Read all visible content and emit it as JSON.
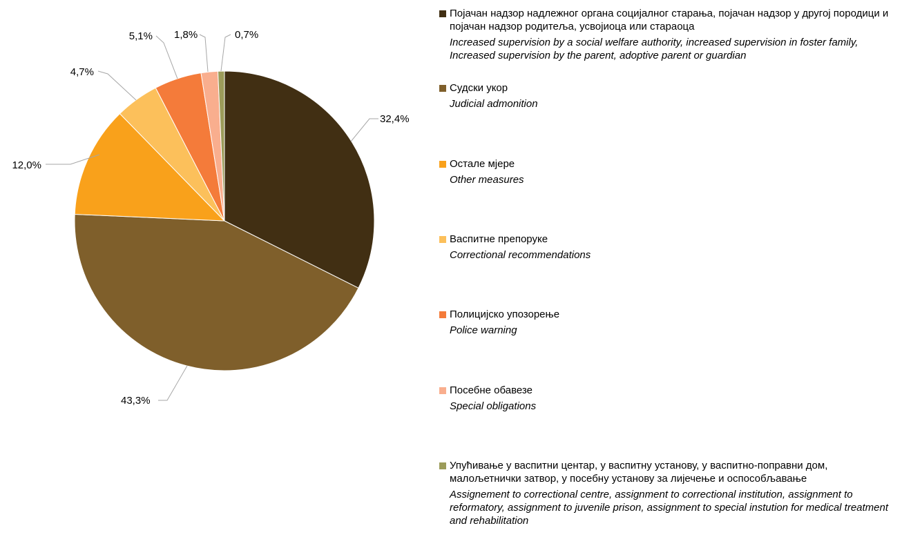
{
  "chart_data": {
    "type": "pie",
    "title": "",
    "unit": "%",
    "slices": [
      {
        "label_sr": "Појачан надзор надлежног органа социјалног старања, појачан надзор у другој породици и појачан надзор родитеља, усвојиоца или стараоца",
        "label_en": "Increased supervision by a social welfare authority, increased supervision in foster family, Increased supervision by the parent, adoptive parent or guardian",
        "value": 32.4,
        "value_label": "32,4%",
        "color": "#412F13"
      },
      {
        "label_sr": "Судски укор",
        "label_en": "Judicial admonition",
        "value": 43.3,
        "value_label": "43,3%",
        "color": "#7F5F2B"
      },
      {
        "label_sr": "Остале мјере",
        "label_en": "Other measures",
        "value": 12.0,
        "value_label": "12,0%",
        "color": "#F9A11B"
      },
      {
        "label_sr": "Васпитне препоруке",
        "label_en": "Correctional recommendations",
        "value": 4.7,
        "value_label": "4,7%",
        "color": "#FCC05B"
      },
      {
        "label_sr": "Полицијско упозорење",
        "label_en": "Police warning",
        "value": 5.1,
        "value_label": "5,1%",
        "color": "#F47B3A"
      },
      {
        "label_sr": "Посебне обавезе",
        "label_en": "Special obligations",
        "value": 1.8,
        "value_label": "1,8%",
        "color": "#F9AE8E"
      },
      {
        "label_sr": "Упућивање у васпитни центар,  у васпитну установу, у васпитно-поправни дом, малољетнички затвор, у посебну установу за лијечење и оспособљавање",
        "label_en": "Assignement to correctional centre, assignment to correctional institution, assignment to reformatory, assignment to juvenile prison, assignment to special instution for medical treatment and rehabilitation",
        "value": 0.7,
        "value_label": "0,7%",
        "color": "#9C9C5A"
      }
    ],
    "legend_position": "right"
  }
}
